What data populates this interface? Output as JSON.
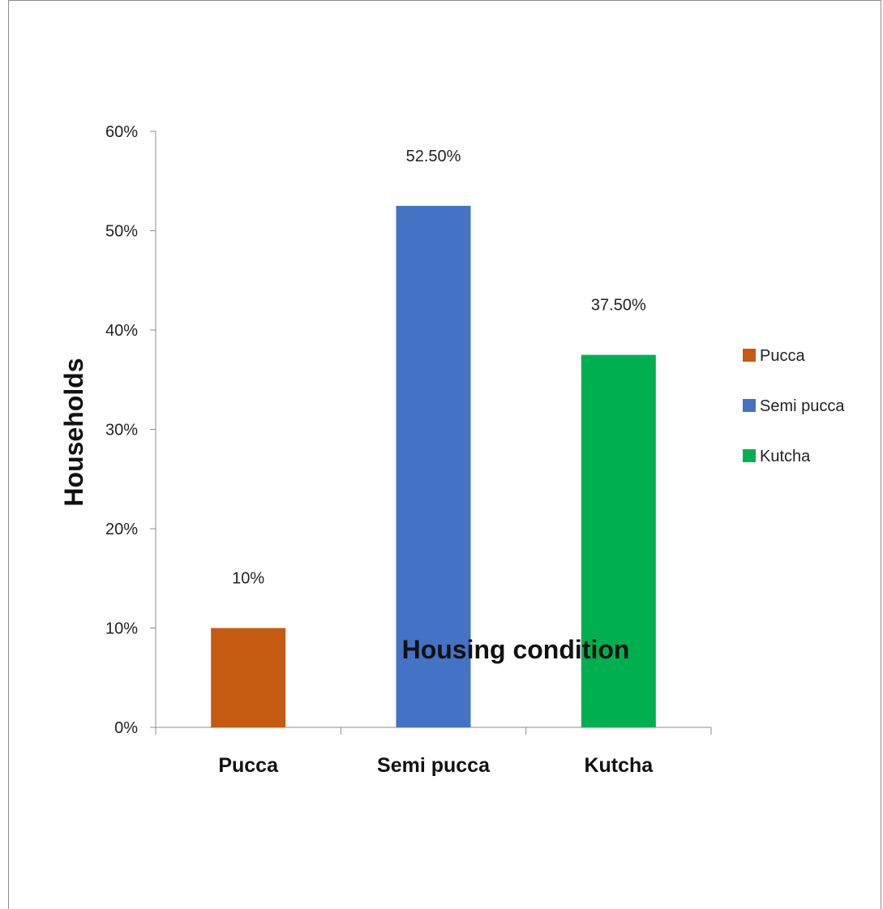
{
  "chart_data": {
    "type": "bar",
    "categories": [
      "Pucca",
      "Semi pucca",
      "Kutcha"
    ],
    "values": [
      0.1,
      0.525,
      0.375
    ],
    "data_labels": [
      "10%",
      "52.50%",
      "37.50%"
    ],
    "colors": [
      "#C55A11",
      "#4472C4",
      "#00B050"
    ],
    "xlabel": "Housing condition",
    "ylabel": "Households",
    "ylim": [
      0,
      0.6
    ],
    "y_ticks": [
      {
        "value": 0,
        "label": "0%"
      },
      {
        "value": 0.1,
        "label": "10%"
      },
      {
        "value": 0.2,
        "label": "20%"
      },
      {
        "value": 0.3,
        "label": "30%"
      },
      {
        "value": 0.4,
        "label": "40%"
      },
      {
        "value": 0.5,
        "label": "50%"
      },
      {
        "value": 0.6,
        "label": "60%"
      }
    ],
    "legend": {
      "placement": "right",
      "entries": [
        "Pucca",
        "Semi pucca",
        "Kutcha"
      ]
    },
    "grid": false
  }
}
